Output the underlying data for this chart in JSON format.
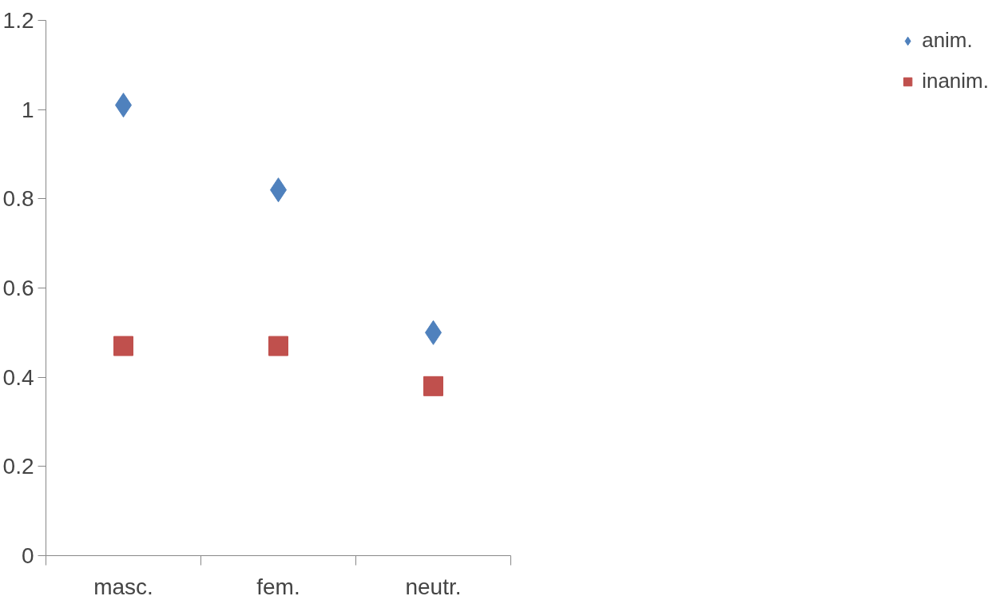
{
  "chart_data": {
    "type": "scatter",
    "categories": [
      "masc.",
      "fem.",
      "neutr."
    ],
    "series": [
      {
        "name": "anim.",
        "color": "#4f81bd",
        "marker": "diamond",
        "values": [
          1.01,
          0.82,
          0.5
        ]
      },
      {
        "name": "inanim.",
        "color": "#c0504d",
        "marker": "square",
        "values": [
          0.47,
          0.47,
          0.38
        ]
      }
    ],
    "ylim": [
      0,
      1.2
    ],
    "yticks": [
      0,
      0.2,
      0.4,
      0.6,
      0.8,
      1,
      1.2
    ],
    "grid": false,
    "legend": "right"
  }
}
